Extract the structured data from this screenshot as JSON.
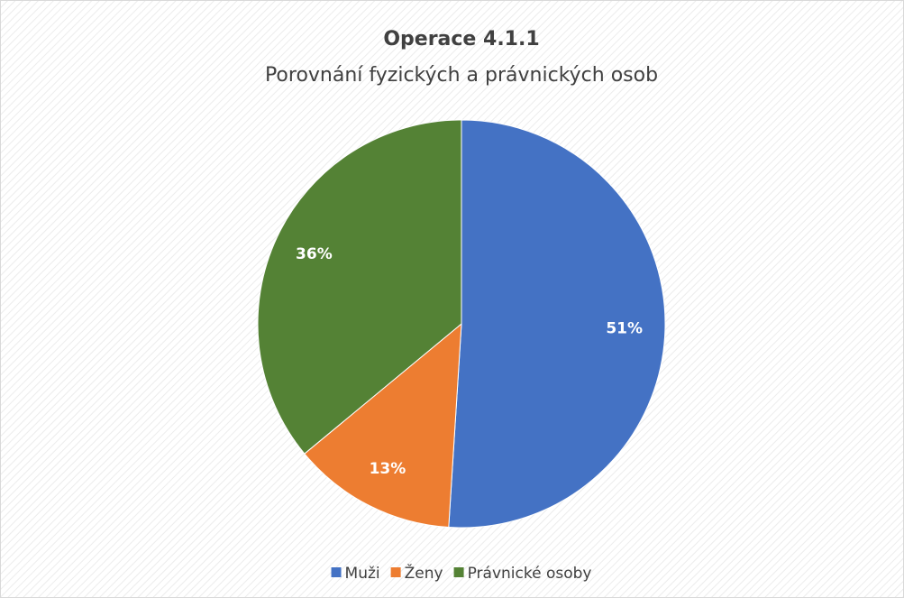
{
  "chart_data": {
    "type": "pie",
    "title": "Operace 4.1.1",
    "subtitle": "Porovnání fyzických a právnických osob",
    "categories": [
      "Muži",
      "Ženy",
      "Právnické osoby"
    ],
    "values": [
      51,
      13,
      36
    ],
    "value_labels": [
      "51%",
      "13%",
      "36%"
    ],
    "colors": [
      "#4472c4",
      "#ed7d31",
      "#548235"
    ],
    "legend": "bottom"
  }
}
